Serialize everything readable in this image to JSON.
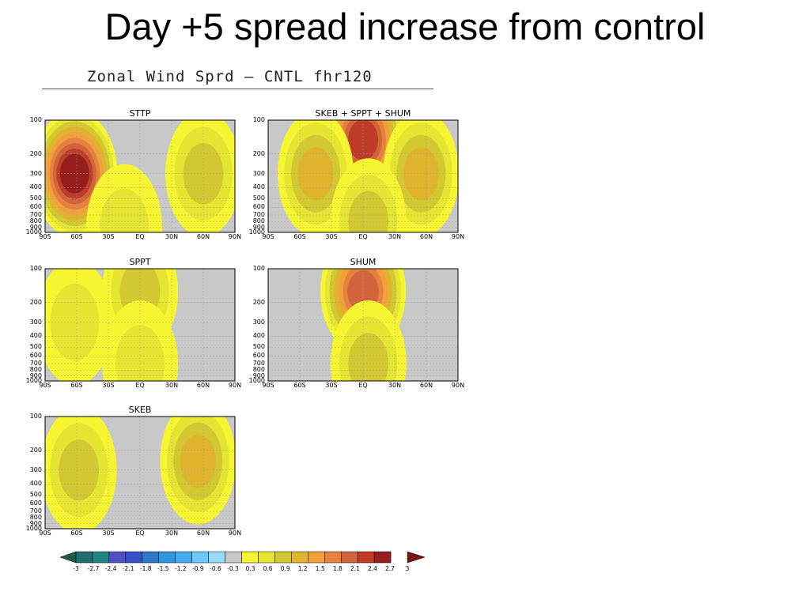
{
  "slide": {
    "title": "Day +5 spread increase from control"
  },
  "figure": {
    "header": "Zonal Wind Sprd – CNTL   fhr120"
  },
  "chart_data": [
    {
      "type": "heatmap",
      "title": "STTP",
      "x_ticks": [
        "90S",
        "60S",
        "30S",
        "EQ",
        "30N",
        "60N",
        "90N"
      ],
      "y_ticks": [
        "100",
        "200",
        "300",
        "400",
        "500",
        "600",
        "700",
        "800",
        "900",
        "1000"
      ],
      "xlim": [
        -90,
        90
      ],
      "ylim": [
        1000,
        100
      ],
      "blobs": [
        {
          "x": -62,
          "p": 300,
          "level": 2.7
        },
        {
          "x": 60,
          "p": 300,
          "level": 0.9
        },
        {
          "x": -15,
          "p": 900,
          "level": 0.6
        }
      ]
    },
    {
      "type": "heatmap",
      "title": "SKEB + SPPT + SHUM",
      "x_ticks": [
        "90S",
        "60S",
        "30S",
        "EQ",
        "30N",
        "60N",
        "90N"
      ],
      "y_ticks": [
        "100",
        "200",
        "300",
        "400",
        "500",
        "600",
        "700",
        "800",
        "900",
        "1000"
      ],
      "xlim": [
        -90,
        90
      ],
      "ylim": [
        1000,
        100
      ],
      "blobs": [
        {
          "x": 0,
          "p": 150,
          "level": 2.4
        },
        {
          "x": -45,
          "p": 300,
          "level": 1.2
        },
        {
          "x": 55,
          "p": 300,
          "level": 1.2
        },
        {
          "x": 5,
          "p": 800,
          "level": 0.9
        }
      ]
    },
    {
      "type": "heatmap",
      "title": "SPPT",
      "x_ticks": [
        "90S",
        "60S",
        "30S",
        "EQ",
        "30N",
        "60N",
        "90N"
      ],
      "y_ticks": [
        "100",
        "200",
        "300",
        "400",
        "500",
        "600",
        "700",
        "800",
        "900",
        "1000"
      ],
      "xlim": [
        -90,
        90
      ],
      "ylim": [
        1000,
        100
      ],
      "blobs": [
        {
          "x": 0,
          "p": 160,
          "level": 0.9
        },
        {
          "x": 0,
          "p": 700,
          "level": 0.6
        },
        {
          "x": -62,
          "p": 300,
          "level": 0.6
        }
      ]
    },
    {
      "type": "heatmap",
      "title": "SHUM",
      "x_ticks": [
        "90S",
        "60S",
        "30S",
        "EQ",
        "30N",
        "60N",
        "90N"
      ],
      "y_ticks": [
        "100",
        "200",
        "300",
        "400",
        "500",
        "600",
        "700",
        "800",
        "900",
        "1000"
      ],
      "xlim": [
        -90,
        90
      ],
      "ylim": [
        1000,
        100
      ],
      "blobs": [
        {
          "x": 0,
          "p": 160,
          "level": 2.1
        },
        {
          "x": 5,
          "p": 700,
          "level": 0.9
        }
      ]
    },
    {
      "type": "heatmap",
      "title": "SKEB",
      "x_ticks": [
        "90S",
        "60S",
        "30S",
        "EQ",
        "30N",
        "60N",
        "90N"
      ],
      "y_ticks": [
        "100",
        "200",
        "300",
        "400",
        "500",
        "600",
        "700",
        "800",
        "900",
        "1000"
      ],
      "xlim": [
        -90,
        90
      ],
      "ylim": [
        1000,
        100
      ],
      "blobs": [
        {
          "x": -58,
          "p": 300,
          "level": 0.9
        },
        {
          "x": 55,
          "p": 250,
          "level": 1.2
        }
      ]
    }
  ],
  "colorbar": {
    "labels": [
      "-3",
      "-2.7",
      "-2.4",
      "-2.1",
      "-1.8",
      "-1.5",
      "-1.2",
      "-0.9",
      "-0.6",
      "-0.3",
      "0.3",
      "0.6",
      "0.9",
      "1.2",
      "1.5",
      "1.8",
      "2.1",
      "2.4",
      "2.7",
      "3"
    ],
    "colors": [
      "#1e5a46",
      "#1f6e6e",
      "#1f8585",
      "#5050c0",
      "#3a50c8",
      "#2d78c8",
      "#2d96dc",
      "#46aaf0",
      "#6ec8fa",
      "#96dcfa",
      "#c8c8c8",
      "#f5f532",
      "#e6e632",
      "#d2c832",
      "#e1b42d",
      "#f0a03c",
      "#e6823c",
      "#d2643c",
      "#be3c28",
      "#961e1e",
      "#781414"
    ]
  }
}
